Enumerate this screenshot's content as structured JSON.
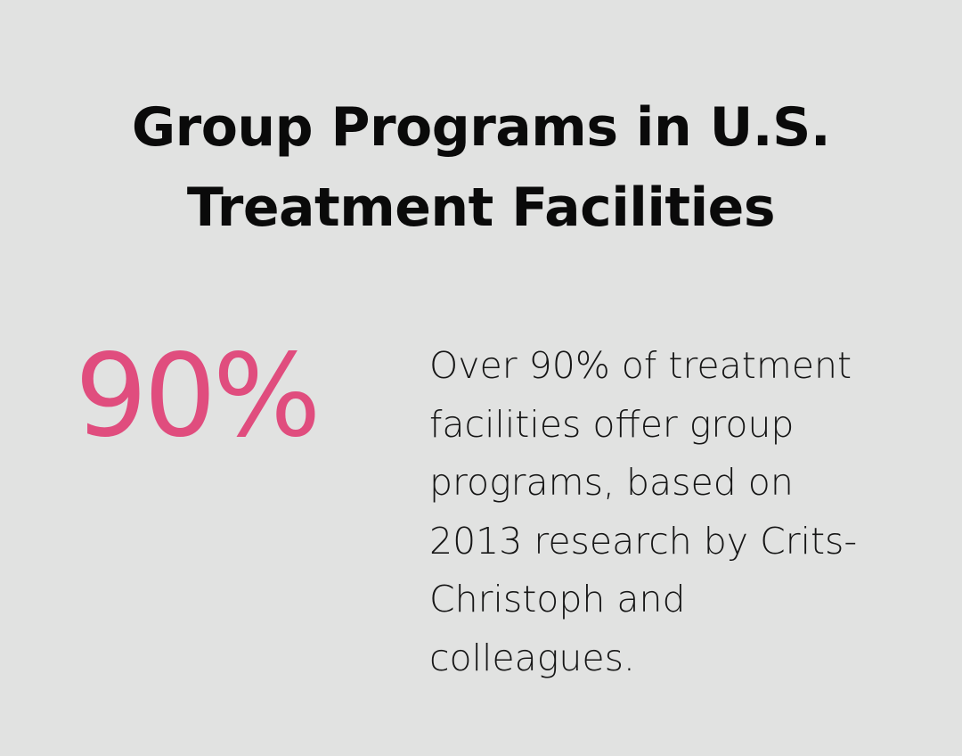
{
  "title": {
    "line1": "Group Programs in U.S.",
    "line2": "Treatment Facilities"
  },
  "stat": {
    "value": "90%",
    "color": "#e04d7e"
  },
  "description": {
    "lines": [
      "Over 90% of treatment",
      "facilities offer group",
      "programs, based on",
      "2013 research by Crits-",
      "Christoph and",
      "colleagues."
    ]
  },
  "colors": {
    "background": "#e1e2e1",
    "text": "#0a0a0a"
  }
}
